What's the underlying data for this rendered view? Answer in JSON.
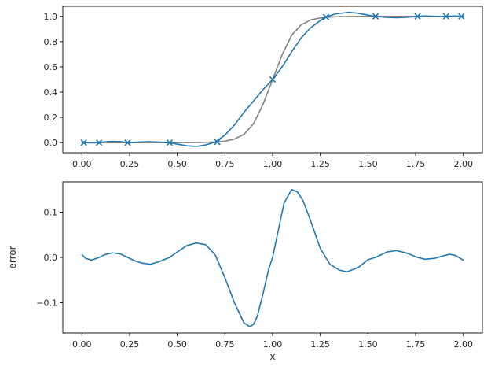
{
  "chart_data": [
    {
      "type": "line",
      "title": "",
      "xlabel": "",
      "ylabel": "",
      "xlim": [
        -0.1,
        2.1
      ],
      "ylim": [
        -0.08,
        1.08
      ],
      "xticks": [
        0.0,
        0.25,
        0.5,
        0.75,
        1.0,
        1.25,
        1.5,
        1.75,
        2.0
      ],
      "xtick_labels": [
        "0.00",
        "0.25",
        "0.50",
        "0.75",
        "1.00",
        "1.25",
        "1.50",
        "1.75",
        "2.00"
      ],
      "yticks": [
        0.0,
        0.2,
        0.4,
        0.6,
        0.8,
        1.0
      ],
      "ytick_labels": [
        "0.0",
        "0.2",
        "0.4",
        "0.6",
        "0.8",
        "1.0"
      ],
      "grid": false,
      "series": [
        {
          "role": "true-function",
          "color": "#808080",
          "x": [
            0.0,
            0.1,
            0.2,
            0.3,
            0.4,
            0.5,
            0.6,
            0.65,
            0.7,
            0.75,
            0.8,
            0.85,
            0.9,
            0.95,
            1.0,
            1.05,
            1.1,
            1.15,
            1.2,
            1.25,
            1.3,
            1.35,
            1.4,
            1.5,
            1.6,
            1.7,
            1.8,
            1.9,
            2.0
          ],
          "y": [
            0.0,
            0.0,
            0.0,
            0.0,
            0.0,
            0.0,
            0.001,
            0.002,
            0.005,
            0.012,
            0.028,
            0.066,
            0.15,
            0.304,
            0.5,
            0.696,
            0.85,
            0.934,
            0.972,
            0.988,
            0.995,
            0.998,
            0.999,
            1.0,
            1.0,
            1.0,
            1.0,
            1.0,
            1.0
          ]
        },
        {
          "role": "interpolant",
          "color": "#1f77b4",
          "x": [
            0.0,
            0.04,
            0.08,
            0.12,
            0.16,
            0.2,
            0.25,
            0.3,
            0.35,
            0.4,
            0.46,
            0.5,
            0.55,
            0.6,
            0.65,
            0.7,
            0.75,
            0.8,
            0.85,
            0.9,
            0.95,
            1.0,
            1.05,
            1.1,
            1.15,
            1.2,
            1.27,
            1.33,
            1.4,
            1.45,
            1.5,
            1.54,
            1.6,
            1.65,
            1.7,
            1.76,
            1.8,
            1.85,
            1.9,
            1.95,
            2.0
          ],
          "y": [
            0.006,
            -0.002,
            0.0,
            0.006,
            0.01,
            0.008,
            0.0,
            0.005,
            0.008,
            0.005,
            0.0,
            -0.012,
            -0.025,
            -0.03,
            -0.018,
            0.005,
            0.06,
            0.14,
            0.24,
            0.33,
            0.42,
            0.5,
            0.6,
            0.72,
            0.83,
            0.91,
            0.99,
            1.02,
            1.032,
            1.025,
            1.01,
            1.0,
            0.992,
            0.99,
            0.993,
            1.0,
            1.003,
            1.001,
            0.998,
            1.003,
            1.0
          ]
        }
      ],
      "samples": {
        "marker": "x",
        "color": "#1f77b4",
        "x": [
          0.01,
          0.09,
          0.24,
          0.46,
          0.71,
          1.0,
          1.28,
          1.54,
          1.76,
          1.91,
          1.99
        ],
        "y": [
          0.0,
          0.0,
          0.0,
          0.0,
          0.005,
          0.5,
          0.995,
          1.0,
          1.0,
          1.0,
          1.0
        ]
      }
    },
    {
      "type": "line",
      "title": "",
      "xlabel": "x",
      "ylabel": "error",
      "xlim": [
        -0.1,
        2.1
      ],
      "ylim": [
        -0.167,
        0.167
      ],
      "xticks": [
        0.0,
        0.25,
        0.5,
        0.75,
        1.0,
        1.25,
        1.5,
        1.75,
        2.0
      ],
      "xtick_labels": [
        "0.00",
        "0.25",
        "0.50",
        "0.75",
        "1.00",
        "1.25",
        "1.50",
        "1.75",
        "2.00"
      ],
      "yticks": [
        -0.1,
        0.0,
        0.1
      ],
      "ytick_labels": [
        "−0.1",
        "0.0",
        "0.1"
      ],
      "grid": false,
      "series": [
        {
          "role": "error",
          "color": "#1f77b4",
          "x": [
            0.0,
            0.02,
            0.05,
            0.09,
            0.12,
            0.16,
            0.2,
            0.24,
            0.28,
            0.32,
            0.36,
            0.4,
            0.46,
            0.5,
            0.55,
            0.6,
            0.65,
            0.7,
            0.75,
            0.8,
            0.85,
            0.88,
            0.9,
            0.92,
            0.95,
            0.98,
            1.0,
            1.03,
            1.06,
            1.1,
            1.13,
            1.16,
            1.2,
            1.25,
            1.3,
            1.35,
            1.39,
            1.45,
            1.5,
            1.54,
            1.6,
            1.65,
            1.7,
            1.76,
            1.8,
            1.85,
            1.9,
            1.93,
            1.96,
            2.0
          ],
          "y": [
            0.006,
            -0.002,
            -0.006,
            0.0,
            0.006,
            0.01,
            0.008,
            0.0,
            -0.008,
            -0.013,
            -0.015,
            -0.01,
            0.0,
            0.012,
            0.026,
            0.032,
            0.028,
            0.005,
            -0.045,
            -0.1,
            -0.145,
            -0.153,
            -0.148,
            -0.13,
            -0.08,
            -0.025,
            0.0,
            0.06,
            0.12,
            0.15,
            0.145,
            0.125,
            0.08,
            0.02,
            -0.015,
            -0.028,
            -0.032,
            -0.022,
            -0.005,
            0.0,
            0.012,
            0.015,
            0.01,
            0.0,
            -0.004,
            -0.002,
            0.004,
            0.007,
            0.004,
            -0.006
          ]
        }
      ]
    }
  ]
}
